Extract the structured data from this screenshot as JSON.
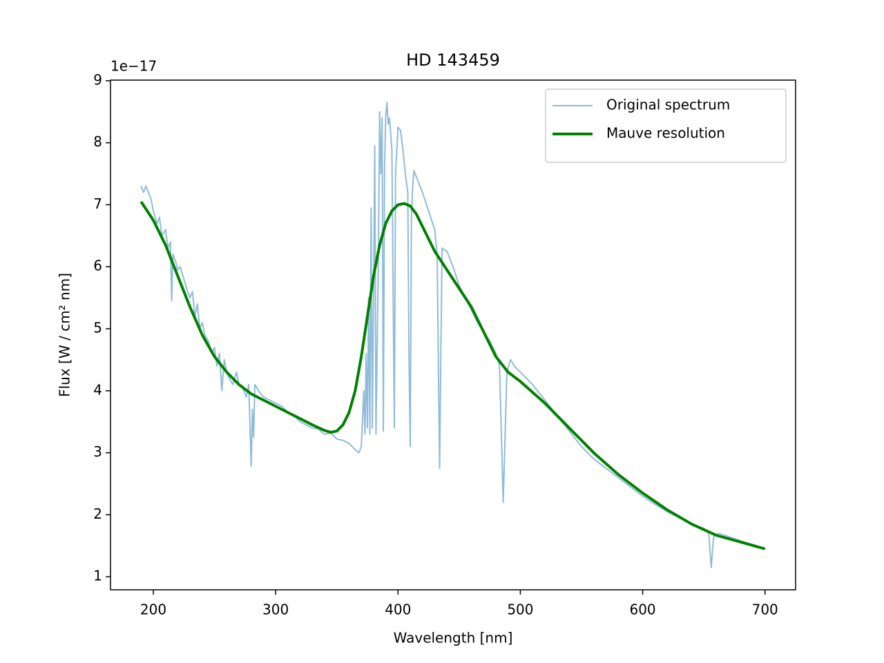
{
  "chart_data": {
    "type": "line",
    "title": "HD 143459",
    "x_label": "Wavelength [nm]",
    "y_label": "Flux [W / cm² nm]",
    "y_offset_label": "1e−17",
    "xlim": [
      165,
      725
    ],
    "ylim": [
      0.79,
      9.01
    ],
    "xticks": [
      200,
      300,
      400,
      500,
      600,
      700
    ],
    "yticks": [
      1,
      2,
      3,
      4,
      5,
      6,
      7,
      8,
      9
    ],
    "grid": false,
    "legend": "upper right",
    "series": [
      {
        "name": "Original spectrum",
        "color": "#8fbbd9",
        "width": 2,
        "x": [
          190,
          192,
          194,
          196,
          198,
          200,
          203,
          205,
          207,
          210,
          212,
          214,
          215,
          216,
          218,
          220,
          222,
          225,
          228,
          230,
          232,
          234,
          236,
          238,
          240,
          242,
          245,
          248,
          250,
          252,
          254,
          256,
          258,
          260,
          262,
          265,
          268,
          270,
          273,
          276,
          278,
          280,
          281,
          282,
          283,
          286,
          290,
          295,
          300,
          305,
          310,
          315,
          320,
          325,
          330,
          335,
          340,
          345,
          350,
          355,
          360,
          365,
          368,
          370,
          372,
          373,
          374,
          375,
          376,
          377,
          378,
          379,
          380,
          381,
          382,
          384,
          385,
          386,
          387,
          388,
          389,
          390,
          391,
          392,
          393,
          395,
          397,
          398,
          400,
          402,
          404,
          406,
          408,
          409,
          410,
          411,
          412,
          413,
          416,
          420,
          425,
          430,
          432,
          434,
          436,
          440,
          445,
          450,
          455,
          460,
          465,
          470,
          475,
          480,
          483,
          486,
          489,
          492,
          495,
          500,
          510,
          520,
          530,
          540,
          550,
          560,
          570,
          580,
          590,
          600,
          610,
          620,
          630,
          640,
          650,
          654,
          656,
          658,
          662,
          670,
          680,
          690,
          700
        ],
        "values": [
          7.3,
          7.2,
          7.3,
          7.2,
          7.1,
          6.9,
          6.7,
          6.8,
          6.5,
          6.6,
          6.3,
          6.4,
          5.45,
          6.2,
          6.1,
          5.95,
          6.0,
          5.8,
          5.6,
          5.5,
          5.6,
          5.2,
          5.4,
          5.0,
          5.1,
          4.9,
          4.8,
          4.6,
          4.7,
          4.4,
          4.6,
          4.0,
          4.5,
          4.3,
          4.2,
          4.1,
          4.3,
          4.1,
          4.05,
          3.9,
          4.1,
          2.78,
          3.7,
          3.25,
          4.1,
          4.0,
          3.9,
          3.85,
          3.8,
          3.75,
          3.65,
          3.6,
          3.5,
          3.45,
          3.4,
          3.38,
          3.3,
          3.32,
          3.22,
          3.2,
          3.15,
          3.05,
          3.0,
          3.1,
          4.0,
          3.3,
          4.6,
          3.4,
          5.5,
          3.3,
          6.95,
          3.4,
          5.5,
          7.95,
          3.3,
          6.2,
          8.5,
          7.5,
          8.4,
          3.35,
          7.6,
          8.45,
          8.65,
          8.3,
          8.4,
          7.9,
          3.4,
          7.5,
          8.25,
          8.2,
          7.9,
          7.5,
          7.2,
          4.5,
          3.1,
          6.8,
          7.3,
          7.55,
          7.4,
          7.2,
          6.9,
          6.6,
          6.2,
          2.75,
          6.3,
          6.25,
          6.0,
          5.7,
          5.5,
          5.3,
          5.1,
          4.95,
          4.8,
          4.6,
          4.4,
          2.2,
          4.3,
          4.5,
          4.4,
          4.3,
          4.1,
          3.85,
          3.6,
          3.35,
          3.1,
          2.9,
          2.75,
          2.6,
          2.45,
          2.3,
          2.17,
          2.05,
          1.95,
          1.85,
          1.78,
          1.7,
          1.15,
          1.65,
          1.7,
          1.65,
          1.58,
          1.52,
          1.45
        ]
      },
      {
        "name": "Mauve resolution",
        "color": "#008000",
        "width": 4,
        "x": [
          190,
          200,
          210,
          220,
          230,
          240,
          250,
          260,
          270,
          280,
          290,
          300,
          310,
          320,
          330,
          340,
          345,
          350,
          355,
          360,
          365,
          370,
          375,
          380,
          385,
          390,
          395,
          400,
          405,
          410,
          415,
          420,
          425,
          430,
          440,
          450,
          460,
          470,
          480,
          490,
          500,
          520,
          540,
          560,
          580,
          600,
          620,
          640,
          660,
          680,
          700
        ],
        "values": [
          7.05,
          6.75,
          6.35,
          5.85,
          5.35,
          4.9,
          4.55,
          4.3,
          4.1,
          3.95,
          3.85,
          3.75,
          3.65,
          3.55,
          3.45,
          3.36,
          3.33,
          3.35,
          3.45,
          3.65,
          4.0,
          4.55,
          5.2,
          5.85,
          6.35,
          6.7,
          6.9,
          7.0,
          7.02,
          6.98,
          6.85,
          6.65,
          6.45,
          6.25,
          5.95,
          5.65,
          5.35,
          4.95,
          4.55,
          4.3,
          4.15,
          3.8,
          3.4,
          3.0,
          2.65,
          2.35,
          2.08,
          1.85,
          1.67,
          1.56,
          1.45
        ]
      }
    ]
  }
}
